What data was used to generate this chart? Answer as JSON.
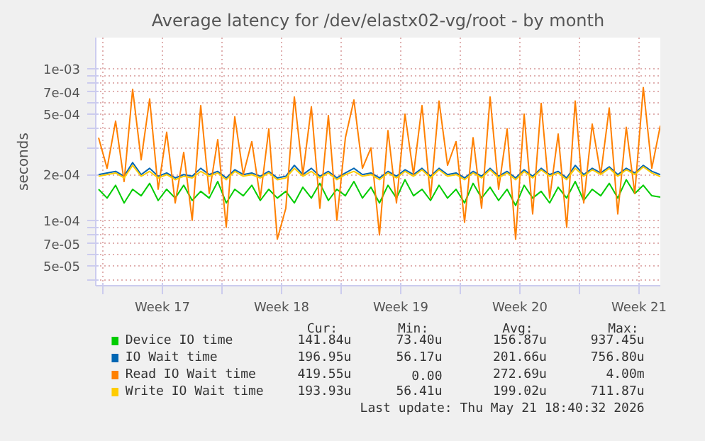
{
  "chart_data": {
    "type": "line",
    "title": "Average latency for /dev/elastx02-vg/root - by month",
    "ylabel": "seconds",
    "log": "y",
    "grid": true,
    "legend": "bottom",
    "xlim": [
      "2026-04-19T14:00",
      "2026-05-22T18:00"
    ],
    "xticks": [
      {
        "value": "2026-04-20T00:00",
        "label": null
      },
      {
        "value": "2026-04-23T12:00",
        "label": "Week 17"
      },
      {
        "value": "2026-04-27T00:00",
        "label": null
      },
      {
        "value": "2026-04-30T12:00",
        "label": "Week 18"
      },
      {
        "value": "2026-05-04T00:00",
        "label": null
      },
      {
        "value": "2026-05-07T12:00",
        "label": "Week 19"
      },
      {
        "value": "2026-05-11T00:00",
        "label": null
      },
      {
        "value": "2026-05-14T12:00",
        "label": "Week 20"
      },
      {
        "value": "2026-05-18T00:00",
        "label": null
      },
      {
        "value": "2026-05-21T12:00",
        "label": "Week 21"
      }
    ],
    "ylim": [
      3.7e-05,
      0.0016
    ],
    "yticks": [
      {
        "value": 4e-05,
        "label": null
      },
      {
        "value": 5e-05,
        "label": "5e-05"
      },
      {
        "value": 6e-05,
        "label": null
      },
      {
        "value": 7e-05,
        "label": "7e-05"
      },
      {
        "value": 8e-05,
        "label": null
      },
      {
        "value": 9e-05,
        "label": null
      },
      {
        "value": 0.0001,
        "label": "1e-04"
      },
      {
        "value": 0.0002,
        "label": "2e-04"
      },
      {
        "value": 0.0003,
        "label": null
      },
      {
        "value": 0.0004,
        "label": null
      },
      {
        "value": 0.0005,
        "label": "5e-04"
      },
      {
        "value": 0.0006,
        "label": null
      },
      {
        "value": 0.0007,
        "label": "7e-04"
      },
      {
        "value": 0.0008,
        "label": null
      },
      {
        "value": 0.0009,
        "label": null
      },
      {
        "value": 0.001,
        "label": "1e-03"
      }
    ],
    "x": [
      "2026-04-19T18:00",
      "2026-04-20T06:00",
      "2026-04-20T18:00",
      "2026-04-21T06:00",
      "2026-04-21T18:00",
      "2026-04-22T06:00",
      "2026-04-22T18:00",
      "2026-04-23T06:00",
      "2026-04-23T18:00",
      "2026-04-24T06:00",
      "2026-04-24T18:00",
      "2026-04-25T06:00",
      "2026-04-25T18:00",
      "2026-04-26T06:00",
      "2026-04-26T18:00",
      "2026-04-27T06:00",
      "2026-04-27T18:00",
      "2026-04-28T06:00",
      "2026-04-28T18:00",
      "2026-04-29T06:00",
      "2026-04-29T18:00",
      "2026-04-30T06:00",
      "2026-04-30T18:00",
      "2026-05-01T06:00",
      "2026-05-01T18:00",
      "2026-05-02T06:00",
      "2026-05-02T18:00",
      "2026-05-03T06:00",
      "2026-05-03T18:00",
      "2026-05-04T06:00",
      "2026-05-04T18:00",
      "2026-05-05T06:00",
      "2026-05-05T18:00",
      "2026-05-06T06:00",
      "2026-05-06T18:00",
      "2026-05-07T06:00",
      "2026-05-07T18:00",
      "2026-05-08T06:00",
      "2026-05-08T18:00",
      "2026-05-09T06:00",
      "2026-05-09T18:00",
      "2026-05-10T06:00",
      "2026-05-10T18:00",
      "2026-05-11T06:00",
      "2026-05-11T18:00",
      "2026-05-12T06:00",
      "2026-05-12T18:00",
      "2026-05-13T06:00",
      "2026-05-13T18:00",
      "2026-05-14T06:00",
      "2026-05-14T18:00",
      "2026-05-15T06:00",
      "2026-05-15T18:00",
      "2026-05-16T06:00",
      "2026-05-16T18:00",
      "2026-05-17T06:00",
      "2026-05-17T18:00",
      "2026-05-18T06:00",
      "2026-05-18T18:00",
      "2026-05-19T06:00",
      "2026-05-19T18:00",
      "2026-05-20T06:00",
      "2026-05-20T18:00",
      "2026-05-21T06:00",
      "2026-05-21T18:00",
      "2026-05-22T06:00",
      "2026-05-22T18:00"
    ],
    "series": [
      {
        "name": "Device IO time",
        "color": "#00cc00",
        "values": [
          0.00016,
          0.00014,
          0.00017,
          0.00013,
          0.00016,
          0.000145,
          0.000175,
          0.000135,
          0.00016,
          0.00014,
          0.00017,
          0.000135,
          0.000155,
          0.00014,
          0.00018,
          0.00013,
          0.00016,
          0.000145,
          0.00017,
          0.000135,
          0.00016,
          0.00014,
          0.000155,
          0.00013,
          0.000165,
          0.00014,
          0.000175,
          0.000135,
          0.00016,
          0.000145,
          0.00018,
          0.00014,
          0.000165,
          0.00013,
          0.00017,
          0.00014,
          0.000185,
          0.000145,
          0.00016,
          0.000135,
          0.00017,
          0.00014,
          0.00016,
          0.00013,
          0.000175,
          0.00014,
          0.000165,
          0.000135,
          0.00016,
          0.000125,
          0.00017,
          0.00014,
          0.000155,
          0.00013,
          0.000165,
          0.00014,
          0.00018,
          0.000135,
          0.00016,
          0.000145,
          0.000175,
          0.00014,
          0.000185,
          0.00015,
          0.00017,
          0.000145,
          0.000142
        ]
      },
      {
        "name": "IO Wait time",
        "color": "#0066b3",
        "values": [
          0.0002,
          0.000205,
          0.00021,
          0.000195,
          0.00024,
          0.0002,
          0.00022,
          0.000195,
          0.000205,
          0.00019,
          0.0002,
          0.000195,
          0.00022,
          0.0002,
          0.00021,
          0.00019,
          0.000215,
          0.0002,
          0.000205,
          0.000195,
          0.00021,
          0.00019,
          0.000195,
          0.00023,
          0.0002,
          0.00022,
          0.000195,
          0.00021,
          0.00019,
          0.000205,
          0.00022,
          0.0002,
          0.000205,
          0.00019,
          0.00021,
          0.000195,
          0.000215,
          0.0002,
          0.00022,
          0.000195,
          0.00022,
          0.0002,
          0.000205,
          0.00019,
          0.00021,
          0.000195,
          0.00022,
          0.000195,
          0.00021,
          0.00019,
          0.000215,
          0.000195,
          0.00022,
          0.0002,
          0.00021,
          0.00019,
          0.00023,
          0.0002,
          0.00022,
          0.000205,
          0.000225,
          0.0002,
          0.00022,
          0.000205,
          0.00023,
          0.00021,
          0.0002
        ]
      },
      {
        "name": "Read IO Wait time",
        "color": "#ff8000",
        "values": [
          0.00035,
          0.00022,
          0.00045,
          0.00018,
          0.00073,
          0.00025,
          0.00063,
          0.00016,
          0.00038,
          0.00013,
          0.00028,
          0.0001,
          0.00057,
          0.00015,
          0.00034,
          9e-05,
          0.00048,
          0.0002,
          0.00033,
          0.00014,
          0.0004,
          7.5e-05,
          0.00012,
          0.00065,
          0.0002,
          0.00056,
          0.00012,
          0.00049,
          0.0001,
          0.00035,
          0.00062,
          0.00022,
          0.0003,
          8e-05,
          0.00039,
          0.00013,
          0.0005,
          0.0002,
          0.00057,
          0.00014,
          0.00061,
          0.00023,
          0.00033,
          9.7e-05,
          0.00035,
          0.00012,
          0.00065,
          0.00016,
          0.0004,
          7.5e-05,
          0.0005,
          0.00011,
          0.00059,
          0.00014,
          0.00037,
          9e-05,
          0.00061,
          0.00013,
          0.00043,
          0.0002,
          0.00055,
          0.00011,
          0.00041,
          0.00015,
          0.00075,
          0.00022,
          0.00042
        ]
      },
      {
        "name": "Write IO Wait time",
        "color": "#ffcc00",
        "values": [
          0.000195,
          0.0002,
          0.000205,
          0.00019,
          0.00023,
          0.000195,
          0.00021,
          0.00019,
          0.0002,
          0.000185,
          0.000195,
          0.00019,
          0.00021,
          0.000195,
          0.000205,
          0.000185,
          0.00021,
          0.000195,
          0.0002,
          0.00019,
          0.000205,
          0.000185,
          0.00019,
          0.00022,
          0.000195,
          0.00021,
          0.00019,
          0.000205,
          0.000185,
          0.0002,
          0.00021,
          0.000195,
          0.0002,
          0.000185,
          0.000205,
          0.00019,
          0.00021,
          0.000195,
          0.000215,
          0.00019,
          0.000215,
          0.000195,
          0.0002,
          0.000185,
          0.000205,
          0.00019,
          0.000215,
          0.00019,
          0.000205,
          0.000185,
          0.00021,
          0.00019,
          0.000215,
          0.000195,
          0.000205,
          0.000185,
          0.00022,
          0.000195,
          0.000215,
          0.0002,
          0.00022,
          0.000195,
          0.000215,
          0.0002,
          0.000225,
          0.000205,
          0.000194
        ]
      }
    ],
    "annotations": [
      "Cur:",
      "Min:",
      "Avg:",
      "Max:",
      "141.84u",
      "73.40u",
      "156.87u",
      "937.45u",
      "196.95u",
      "56.17u",
      "201.66u",
      "756.80u",
      "419.55u",
      "0.00",
      "272.69u",
      "4.00m",
      "193.93u",
      "56.41u",
      "199.02u",
      "711.87u",
      "Last update: Thu May 21 18:40:32 2026"
    ]
  }
}
